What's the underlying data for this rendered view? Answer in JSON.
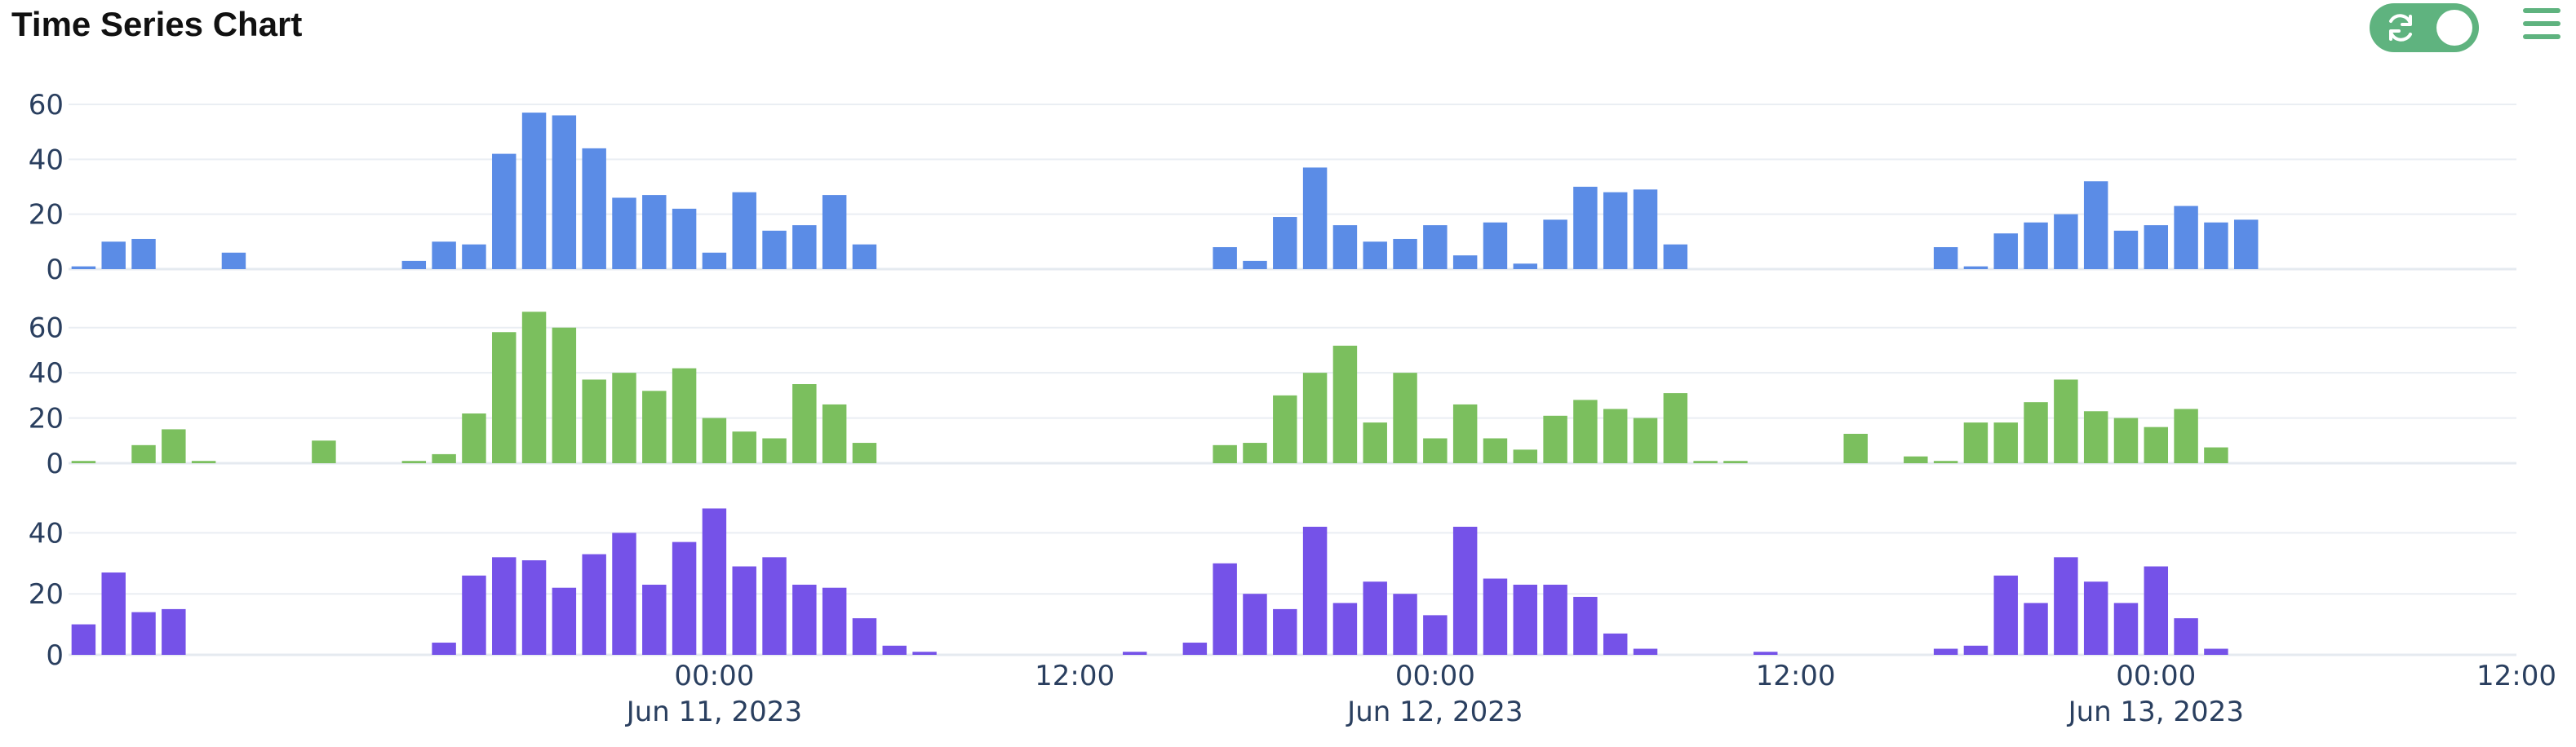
{
  "header": {
    "title": "Time Series Chart",
    "toggle_icon": "refresh-icon",
    "menu_icon": "hamburger-menu-icon",
    "accent_color": "#5fb37f"
  },
  "chart_data": {
    "type": "bar",
    "x_start": "2023-06-10T03:00",
    "x_step_hours": 1,
    "x_range": [
      "2023-06-10T02:30",
      "2023-06-13T12:00"
    ],
    "x_tick_labels": [
      {
        "time": "2023-06-11T00:00",
        "line1": "00:00",
        "line2": "Jun 11, 2023"
      },
      {
        "time": "2023-06-11T12:00",
        "line1": "12:00",
        "line2": ""
      },
      {
        "time": "2023-06-12T00:00",
        "line1": "00:00",
        "line2": "Jun 12, 2023"
      },
      {
        "time": "2023-06-12T12:00",
        "line1": "12:00",
        "line2": ""
      },
      {
        "time": "2023-06-13T00:00",
        "line1": "00:00",
        "line2": "Jun 13, 2023"
      },
      {
        "time": "2023-06-13T12:00",
        "line1": "12:00",
        "line2": ""
      }
    ],
    "grid": true,
    "legend": "none",
    "series": [
      {
        "color": "#5b8ce6",
        "ylim": [
          0,
          60
        ],
        "yticks": [
          0,
          20,
          40,
          60
        ],
        "values": [
          1,
          10,
          11,
          0,
          0,
          6,
          0,
          0,
          0,
          0,
          0,
          3,
          10,
          9,
          42,
          57,
          56,
          44,
          26,
          27,
          22,
          6,
          28,
          14,
          16,
          27,
          9,
          0,
          0,
          0,
          0,
          0,
          0,
          0,
          0,
          0,
          0,
          0,
          8,
          3,
          19,
          37,
          16,
          10,
          11,
          16,
          5,
          17,
          2,
          18,
          30,
          28,
          29,
          9,
          0,
          0,
          0,
          0,
          0,
          0,
          0,
          0,
          8,
          1,
          13,
          17,
          20,
          32,
          14,
          16,
          23,
          17,
          18
        ]
      },
      {
        "color": "#7bbf5e",
        "ylim": [
          0,
          70
        ],
        "yticks": [
          0,
          20,
          40,
          60
        ],
        "values": [
          1,
          0,
          8,
          15,
          1,
          0,
          0,
          0,
          10,
          0,
          0,
          1,
          4,
          22,
          58,
          67,
          60,
          37,
          40,
          32,
          42,
          20,
          14,
          11,
          35,
          26,
          9,
          0,
          0,
          0,
          0,
          0,
          0,
          0,
          0,
          0,
          0,
          0,
          8,
          9,
          30,
          40,
          52,
          18,
          40,
          11,
          26,
          11,
          6,
          21,
          28,
          24,
          20,
          31,
          1,
          1,
          0,
          0,
          0,
          13,
          0,
          3,
          1,
          18,
          18,
          27,
          37,
          23,
          20,
          16,
          24,
          7
        ]
      },
      {
        "color": "#7552e8",
        "ylim": [
          0,
          50
        ],
        "yticks": [
          0,
          20,
          40
        ],
        "values": [
          10,
          27,
          14,
          15,
          0,
          0,
          0,
          0,
          0,
          0,
          0,
          0,
          4,
          26,
          32,
          31,
          22,
          33,
          40,
          23,
          37,
          48,
          29,
          32,
          23,
          22,
          12,
          3,
          1,
          0,
          0,
          0,
          0,
          0,
          0,
          1,
          0,
          4,
          30,
          20,
          15,
          42,
          17,
          24,
          20,
          13,
          42,
          25,
          23,
          23,
          19,
          7,
          2,
          0,
          0,
          0,
          1,
          0,
          0,
          0,
          0,
          0,
          2,
          3,
          26,
          17,
          32,
          24,
          17,
          29,
          12,
          2
        ]
      }
    ]
  }
}
